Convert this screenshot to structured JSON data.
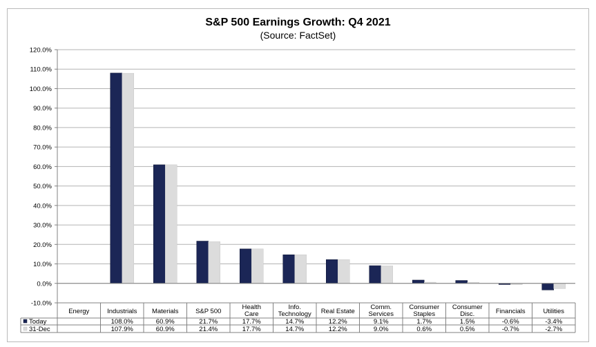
{
  "chart_data": {
    "type": "bar",
    "title": "S&P 500 Earnings Growth: Q4 2021",
    "subtitle": "(Source: FactSet)",
    "ylim": [
      -10,
      120
    ],
    "ytick_step": 10,
    "ytick_labels": [
      "-10.0%",
      "0.0%",
      "10.0%",
      "20.0%",
      "30.0%",
      "40.0%",
      "50.0%",
      "60.0%",
      "70.0%",
      "80.0%",
      "90.0%",
      "100.0%",
      "110.0%",
      "120.0%"
    ],
    "grid": true,
    "categories": [
      [
        "Energy"
      ],
      [
        "Industrials"
      ],
      [
        "Materials"
      ],
      [
        "S&P 500"
      ],
      [
        "Health",
        "Care"
      ],
      [
        "Info.",
        "Technology"
      ],
      [
        "Real Estate"
      ],
      [
        "Comm.",
        "Services"
      ],
      [
        "Consumer",
        "Staples"
      ],
      [
        "Consumer",
        "Disc."
      ],
      [
        "Financials"
      ],
      [
        "Utilities"
      ]
    ],
    "series": [
      {
        "name": "Today",
        "color": "#1b2656",
        "values": [
          null,
          108.0,
          60.9,
          21.7,
          17.7,
          14.7,
          12.2,
          9.1,
          1.7,
          1.5,
          -0.6,
          -3.4
        ],
        "labels": [
          "",
          "108.0%",
          "60.9%",
          "21.7%",
          "17.7%",
          "14.7%",
          "12.2%",
          "9.1%",
          "1.7%",
          "1.5%",
          "-0.6%",
          "-3.4%"
        ]
      },
      {
        "name": "31-Dec",
        "color": "#dcdcdc",
        "values": [
          null,
          107.9,
          60.9,
          21.4,
          17.7,
          14.7,
          12.2,
          9.0,
          0.6,
          0.5,
          -0.7,
          -2.7
        ],
        "labels": [
          "",
          "107.9%",
          "60.9%",
          "21.4%",
          "17.7%",
          "14.7%",
          "12.2%",
          "9.0%",
          "0.6%",
          "0.5%",
          "-0.7%",
          "-2.7%"
        ]
      }
    ],
    "legend": "table-below"
  }
}
